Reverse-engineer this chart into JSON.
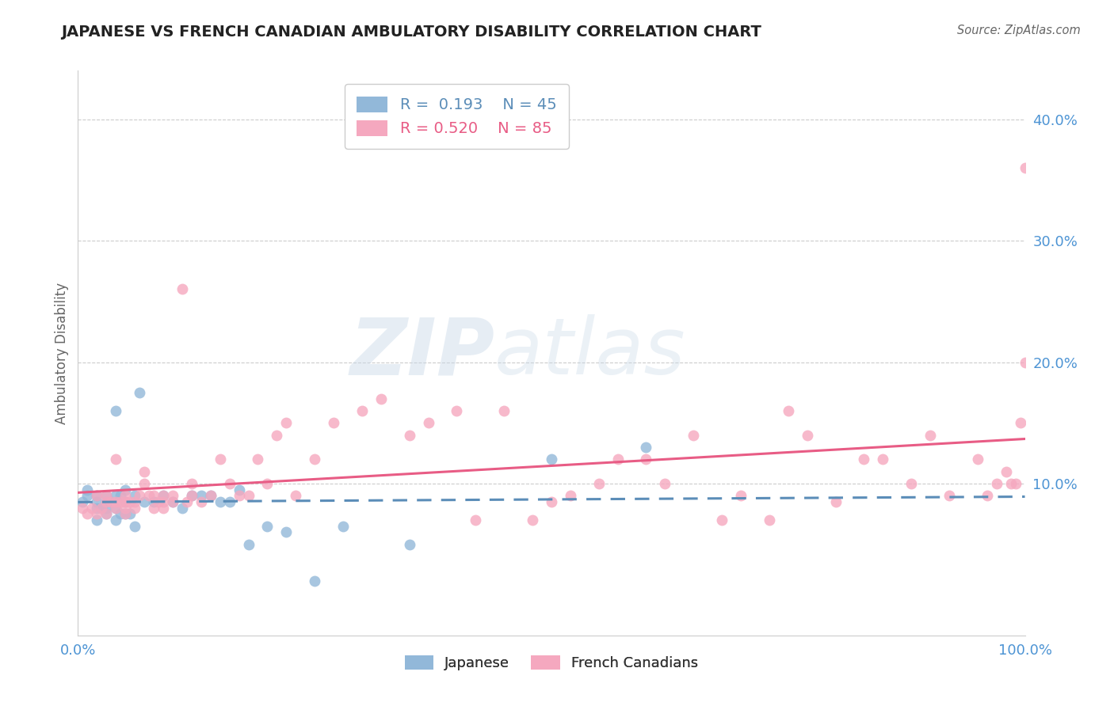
{
  "title": "JAPANESE VS FRENCH CANADIAN AMBULATORY DISABILITY CORRELATION CHART",
  "source": "Source: ZipAtlas.com",
  "ylabel": "Ambulatory Disability",
  "watermark_zip": "ZIP",
  "watermark_atlas": "atlas",
  "xlim": [
    0.0,
    1.0
  ],
  "ylim": [
    -0.025,
    0.44
  ],
  "xticks": [
    0.0,
    0.2,
    0.4,
    0.6,
    0.8,
    1.0
  ],
  "xtick_labels": [
    "0.0%",
    "",
    "",
    "",
    "",
    "100.0%"
  ],
  "yticks": [
    0.0,
    0.1,
    0.2,
    0.3,
    0.4
  ],
  "ytick_labels": [
    "",
    "10.0%",
    "20.0%",
    "30.0%",
    "40.0%"
  ],
  "japanese_R": 0.193,
  "japanese_N": 45,
  "french_R": 0.52,
  "french_N": 85,
  "japanese_color": "#92b8d9",
  "french_color": "#f5a8bf",
  "japanese_line_color": "#5b8db8",
  "french_line_color": "#e85c85",
  "legend_japanese": "Japanese",
  "legend_french": "French Canadians",
  "title_color": "#222222",
  "axis_label_color": "#4d94d4",
  "background_color": "#ffffff",
  "japanese_x": [
    0.005,
    0.01,
    0.01,
    0.02,
    0.02,
    0.02,
    0.02,
    0.025,
    0.03,
    0.03,
    0.03,
    0.03,
    0.035,
    0.04,
    0.04,
    0.04,
    0.04,
    0.045,
    0.045,
    0.05,
    0.05,
    0.05,
    0.055,
    0.06,
    0.06,
    0.065,
    0.07,
    0.08,
    0.09,
    0.1,
    0.11,
    0.12,
    0.13,
    0.14,
    0.15,
    0.16,
    0.17,
    0.18,
    0.2,
    0.22,
    0.25,
    0.28,
    0.35,
    0.5,
    0.6
  ],
  "japanese_y": [
    0.085,
    0.09,
    0.095,
    0.07,
    0.08,
    0.085,
    0.09,
    0.08,
    0.075,
    0.08,
    0.085,
    0.09,
    0.085,
    0.07,
    0.08,
    0.09,
    0.16,
    0.075,
    0.09,
    0.075,
    0.085,
    0.095,
    0.075,
    0.065,
    0.09,
    0.175,
    0.085,
    0.085,
    0.09,
    0.085,
    0.08,
    0.09,
    0.09,
    0.09,
    0.085,
    0.085,
    0.095,
    0.05,
    0.065,
    0.06,
    0.02,
    0.065,
    0.05,
    0.12,
    0.13
  ],
  "french_x": [
    0.005,
    0.01,
    0.015,
    0.02,
    0.02,
    0.025,
    0.03,
    0.03,
    0.03,
    0.035,
    0.04,
    0.04,
    0.04,
    0.045,
    0.05,
    0.05,
    0.05,
    0.05,
    0.055,
    0.06,
    0.06,
    0.065,
    0.07,
    0.07,
    0.075,
    0.08,
    0.08,
    0.085,
    0.09,
    0.09,
    0.09,
    0.1,
    0.1,
    0.11,
    0.115,
    0.12,
    0.12,
    0.13,
    0.14,
    0.15,
    0.16,
    0.17,
    0.18,
    0.19,
    0.2,
    0.21,
    0.22,
    0.23,
    0.25,
    0.27,
    0.3,
    0.32,
    0.35,
    0.37,
    0.4,
    0.42,
    0.45,
    0.48,
    0.5,
    0.52,
    0.55,
    0.57,
    0.6,
    0.62,
    0.65,
    0.68,
    0.7,
    0.73,
    0.75,
    0.77,
    0.8,
    0.83,
    0.85,
    0.88,
    0.9,
    0.92,
    0.95,
    0.96,
    0.97,
    0.98,
    0.985,
    0.99,
    0.995,
    1.0,
    1.0
  ],
  "french_y": [
    0.08,
    0.075,
    0.08,
    0.075,
    0.09,
    0.08,
    0.075,
    0.085,
    0.09,
    0.085,
    0.08,
    0.085,
    0.12,
    0.085,
    0.075,
    0.08,
    0.085,
    0.09,
    0.085,
    0.08,
    0.085,
    0.09,
    0.1,
    0.11,
    0.09,
    0.08,
    0.09,
    0.085,
    0.08,
    0.085,
    0.09,
    0.085,
    0.09,
    0.26,
    0.085,
    0.09,
    0.1,
    0.085,
    0.09,
    0.12,
    0.1,
    0.09,
    0.09,
    0.12,
    0.1,
    0.14,
    0.15,
    0.09,
    0.12,
    0.15,
    0.16,
    0.17,
    0.14,
    0.15,
    0.16,
    0.07,
    0.16,
    0.07,
    0.085,
    0.09,
    0.1,
    0.12,
    0.12,
    0.1,
    0.14,
    0.07,
    0.09,
    0.07,
    0.16,
    0.14,
    0.085,
    0.12,
    0.12,
    0.1,
    0.14,
    0.09,
    0.12,
    0.09,
    0.1,
    0.11,
    0.1,
    0.1,
    0.15,
    0.2,
    0.36
  ]
}
